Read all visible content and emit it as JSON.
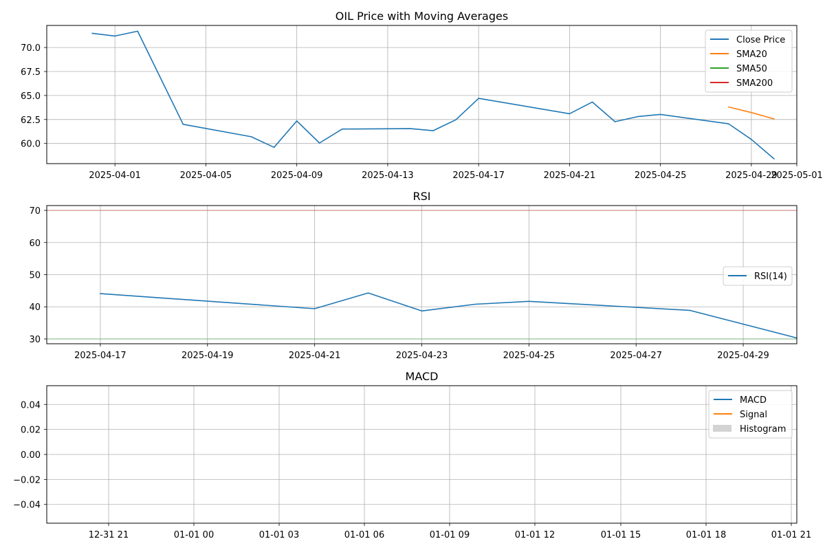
{
  "colors": {
    "close": "#1f77b4",
    "sma20": "#ff7f0e",
    "sma50": "#2ca02c",
    "sma200": "#d62728",
    "rsi": "#1f77b4",
    "overbought": "#d62728",
    "oversold": "#2ca02c",
    "macd": "#1f77b4",
    "signal": "#ff7f0e",
    "histogram": "#d3d3d3",
    "grid": "#b0b0b0"
  },
  "chart_data": [
    {
      "type": "line",
      "title": "OIL Price with Moving Averages",
      "xlabel": "",
      "ylabel": "",
      "x_axis": "date",
      "xlim": [
        "2025-03-29",
        "2025-05-01"
      ],
      "ylim": [
        57.9,
        72.3
      ],
      "x_ticks": [
        "2025-04-01",
        "2025-04-05",
        "2025-04-09",
        "2025-04-13",
        "2025-04-17",
        "2025-04-21",
        "2025-04-25",
        "2025-04-29",
        "2025-05-01"
      ],
      "y_ticks": [
        60.0,
        62.5,
        65.0,
        67.5,
        70.0
      ],
      "grid": true,
      "legend": "upper right",
      "series": [
        {
          "name": "Close Price",
          "color_key": "close",
          "points": [
            [
              "2025-03-31",
              71.48
            ],
            [
              "2025-04-01",
              71.2
            ],
            [
              "2025-04-02",
              71.7
            ],
            [
              "2025-04-04",
              62.0
            ],
            [
              "2025-04-07",
              60.7
            ],
            [
              "2025-04-08",
              59.6
            ],
            [
              "2025-04-09",
              62.35
            ],
            [
              "2025-04-10",
              60.05
            ],
            [
              "2025-04-11",
              61.5
            ],
            [
              "2025-04-14",
              61.55
            ],
            [
              "2025-04-15",
              61.33
            ],
            [
              "2025-04-16",
              62.47
            ],
            [
              "2025-04-17",
              64.7
            ],
            [
              "2025-04-21",
              63.1
            ],
            [
              "2025-04-22",
              64.32
            ],
            [
              "2025-04-23",
              62.27
            ],
            [
              "2025-04-24",
              62.8
            ],
            [
              "2025-04-25",
              63.03
            ],
            [
              "2025-04-28",
              62.05
            ],
            [
              "2025-04-29",
              60.42
            ],
            [
              "2025-04-30",
              58.4
            ]
          ]
        },
        {
          "name": "SMA20",
          "color_key": "sma20",
          "points": [
            [
              "2025-04-28",
              63.8
            ],
            [
              "2025-04-29",
              63.22
            ],
            [
              "2025-04-30",
              62.56
            ]
          ]
        },
        {
          "name": "SMA50",
          "color_key": "sma50",
          "points": []
        },
        {
          "name": "SMA200",
          "color_key": "sma200",
          "points": []
        }
      ]
    },
    {
      "type": "line",
      "title": "RSI",
      "xlabel": "",
      "ylabel": "",
      "x_axis": "date",
      "xlim": [
        "2025-04-16",
        "2025-04-30"
      ],
      "ylim": [
        28.5,
        71.5
      ],
      "x_ticks": [
        "2025-04-17",
        "2025-04-19",
        "2025-04-21",
        "2025-04-23",
        "2025-04-25",
        "2025-04-27",
        "2025-04-29"
      ],
      "y_ticks": [
        30,
        40,
        50,
        60,
        70
      ],
      "grid": true,
      "legend": "center right",
      "reference_lines": [
        {
          "y": 70,
          "color_key": "overbought"
        },
        {
          "y": 30,
          "color_key": "oversold"
        }
      ],
      "series": [
        {
          "name": "RSI(14)",
          "color_key": "rsi",
          "points": [
            [
              "2025-04-17",
              44.1
            ],
            [
              "2025-04-21",
              39.4
            ],
            [
              "2025-04-22",
              44.3
            ],
            [
              "2025-04-23",
              38.7
            ],
            [
              "2025-04-24",
              40.8
            ],
            [
              "2025-04-25",
              41.7
            ],
            [
              "2025-04-28",
              38.9
            ],
            [
              "2025-04-30",
              30.3
            ]
          ]
        }
      ]
    },
    {
      "type": "line",
      "title": "MACD",
      "xlabel": "",
      "ylabel": "",
      "x_axis": "datetime",
      "xlim": [
        "1969-12-31T19:00",
        "1970-01-01T21:00"
      ],
      "ylim": [
        -0.055,
        0.055
      ],
      "x_ticks": [
        "12-31 21",
        "01-01 00",
        "01-01 03",
        "01-01 06",
        "01-01 09",
        "01-01 12",
        "01-01 15",
        "01-01 18",
        "01-01 21"
      ],
      "y_ticks": [
        -0.04,
        -0.02,
        0.0,
        0.02,
        0.04
      ],
      "grid": true,
      "legend": "upper right",
      "series": [
        {
          "name": "MACD",
          "color_key": "macd",
          "points": []
        },
        {
          "name": "Signal",
          "color_key": "signal",
          "points": []
        },
        {
          "name": "Histogram",
          "color_key": "histogram",
          "kind": "bar",
          "points": []
        }
      ]
    }
  ]
}
